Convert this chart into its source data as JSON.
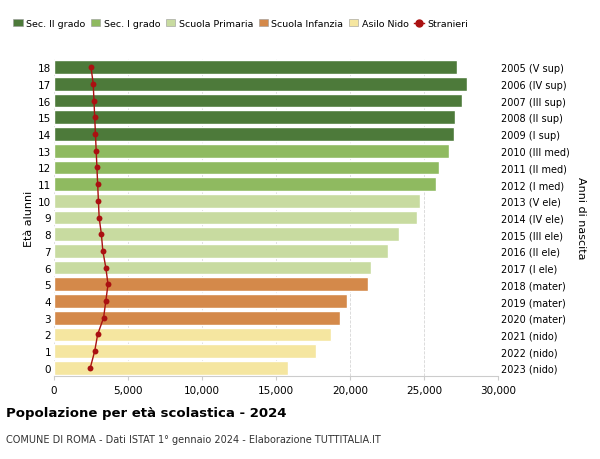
{
  "ages": [
    0,
    1,
    2,
    3,
    4,
    5,
    6,
    7,
    8,
    9,
    10,
    11,
    12,
    13,
    14,
    15,
    16,
    17,
    18
  ],
  "years": [
    "2023 (nido)",
    "2022 (nido)",
    "2021 (nido)",
    "2020 (mater)",
    "2019 (mater)",
    "2018 (mater)",
    "2017 (I ele)",
    "2016 (II ele)",
    "2015 (III ele)",
    "2014 (IV ele)",
    "2013 (V ele)",
    "2012 (I med)",
    "2011 (II med)",
    "2010 (III med)",
    "2009 (I sup)",
    "2008 (II sup)",
    "2007 (III sup)",
    "2006 (IV sup)",
    "2005 (V sup)"
  ],
  "population": [
    15800,
    17700,
    18700,
    19300,
    19800,
    21200,
    21400,
    22600,
    23300,
    24500,
    24700,
    25800,
    26000,
    26700,
    27000,
    27100,
    27600,
    27900,
    27200
  ],
  "stranieri": [
    2450,
    2750,
    2950,
    3350,
    3500,
    3650,
    3500,
    3300,
    3200,
    3050,
    3000,
    2950,
    2900,
    2850,
    2800,
    2750,
    2700,
    2650,
    2500
  ],
  "bar_colors": [
    "#f5e6a0",
    "#f5e6a0",
    "#f5e6a0",
    "#d4894a",
    "#d4894a",
    "#d4894a",
    "#c8dba0",
    "#c8dba0",
    "#c8dba0",
    "#c8dba0",
    "#c8dba0",
    "#8fba60",
    "#8fba60",
    "#8fba60",
    "#4d7a3a",
    "#4d7a3a",
    "#4d7a3a",
    "#4d7a3a",
    "#4d7a3a"
  ],
  "legend_colors": [
    "#4d7a3a",
    "#8fba60",
    "#c8dba0",
    "#d4894a",
    "#f5e6a0",
    "#cc0000"
  ],
  "legend_labels": [
    "Sec. II grado",
    "Sec. I grado",
    "Scuola Primaria",
    "Scuola Infanzia",
    "Asilo Nido",
    "Stranieri"
  ],
  "title": "Popolazione per età scolastica - 2024",
  "subtitle": "COMUNE DI ROMA - Dati ISTAT 1° gennaio 2024 - Elaborazione TUTTITALIA.IT",
  "ylabel": "Età alunni",
  "y2label": "Anni di nascita",
  "xlabel_vals": [
    0,
    5000,
    10000,
    15000,
    20000,
    25000,
    30000
  ],
  "xlabel_labels": [
    "0",
    "5,000",
    "10,000",
    "15,000",
    "20,000",
    "25,000",
    "30,000"
  ],
  "xlim": [
    0,
    30000
  ],
  "ylim": [
    -0.5,
    18.5
  ],
  "background_color": "#ffffff",
  "bar_edge_color": "#ffffff",
  "stranieri_color": "#aa1111",
  "grid_color": "#cccccc",
  "bar_height": 0.82
}
